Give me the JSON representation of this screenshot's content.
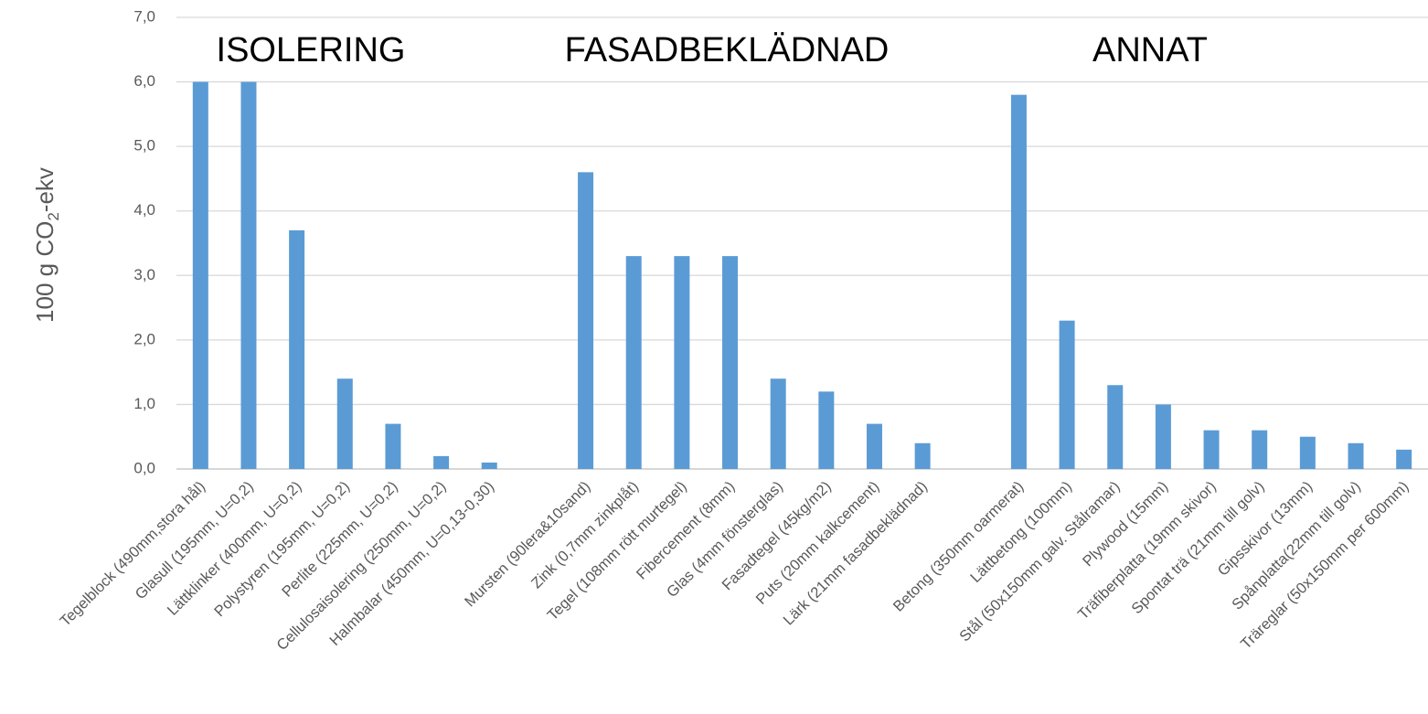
{
  "chart_data": {
    "type": "bar",
    "y_label": {
      "text": "100 g CO",
      "sub": "2",
      "tail": "-ekv"
    },
    "annotations": [
      "ISOLERING",
      "FASADBEKLÄDNAD",
      "ANNAT"
    ],
    "categories": [
      "Tegelblock (490mm,stora hål)",
      "Glasull (195mm, U=0,2)",
      "Lättklinker (400mm, U=0,2)",
      "Polystyren (195mm, U=0,2)",
      "Perlite (225mm, U=0,2)",
      "Cellulosaisolering (250mm, U=0,2)",
      "Halmbalar (450mm, U=0,13-0,30)",
      null,
      "Mursten (90lera&10sand)",
      "Zink (0,7mm zinkplåt)",
      "Tegel (108mm rött murtegel)",
      "Fibercement (8mm)",
      "Glas (4mm fönsterglas)",
      "Fasadtegel (45kg/m2)",
      "Puts (20mm kalkcement)",
      "Lärk (21mm fasadbeklädnad)",
      null,
      "Betong (350mm oarmerat)",
      "Lättbetong (100mm)",
      "Stål (50x150mm galv. Stålramar)",
      "Plywood (15mm)",
      "Träfiberplatta (19mm skivor)",
      "Spontat trä (21mm till golv)",
      "Gipsskivor (13mm)",
      "Spånplatta(22mm till golv)",
      "Träreglar (50x150mm per 600mm)"
    ],
    "values": [
      6.0,
      6.0,
      3.7,
      1.4,
      0.7,
      0.2,
      0.1,
      null,
      4.6,
      3.3,
      3.3,
      3.3,
      1.4,
      1.2,
      0.7,
      0.4,
      null,
      5.8,
      2.3,
      1.3,
      1.0,
      0.6,
      0.6,
      0.5,
      0.4,
      0.3
    ],
    "color": "#5b9bd5",
    "ylim": [
      0,
      7
    ],
    "yticks": [
      {
        "value": 0,
        "label": "0,0"
      },
      {
        "value": 1,
        "label": "1,0"
      },
      {
        "value": 2,
        "label": "2,0"
      },
      {
        "value": 3,
        "label": "3,0"
      },
      {
        "value": 4,
        "label": "4,0"
      },
      {
        "value": 5,
        "label": "5,0"
      },
      {
        "value": 6,
        "label": "6,0"
      },
      {
        "value": 7,
        "label": "7,0"
      }
    ],
    "grid": true
  }
}
